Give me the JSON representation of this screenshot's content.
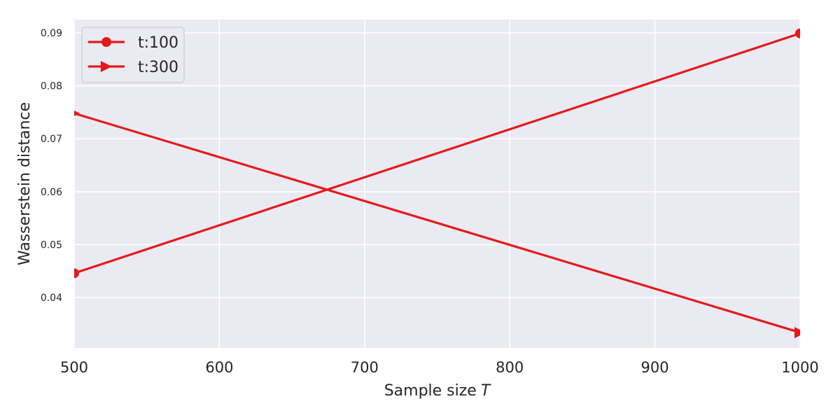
{
  "chart_data": {
    "type": "line",
    "title": "",
    "xlabel": "Sample size",
    "xlabel_italic": "T",
    "ylabel": "Wasserstein distance",
    "xlim": [
      500,
      1000
    ],
    "ylim": [
      0.0305,
      0.0925
    ],
    "x_ticks": [
      500,
      600,
      700,
      800,
      900,
      1000
    ],
    "x_tick_labels": [
      "500",
      "600",
      "700",
      "800",
      "900",
      "1000"
    ],
    "y_ticks": [
      0.04,
      0.05,
      0.06,
      0.07,
      0.08,
      0.09
    ],
    "y_tick_labels": [
      "0.04",
      "0.05",
      "0.06",
      "0.07",
      "0.08",
      "0.09"
    ],
    "grid": true,
    "legend_position": "top-left",
    "series": [
      {
        "name": "t:100",
        "marker": "circle",
        "color": "#e31a1c",
        "x": [
          500,
          1000
        ],
        "y": [
          0.0446,
          0.0899
        ]
      },
      {
        "name": "t:300",
        "marker": "triangle-right",
        "color": "#e31a1c",
        "x": [
          500,
          1000
        ],
        "y": [
          0.0748,
          0.0334
        ]
      }
    ]
  },
  "style": {
    "plot_background": "#eaeaf2",
    "grid_color": "#ffffff",
    "line_color": "#e31a1c"
  }
}
